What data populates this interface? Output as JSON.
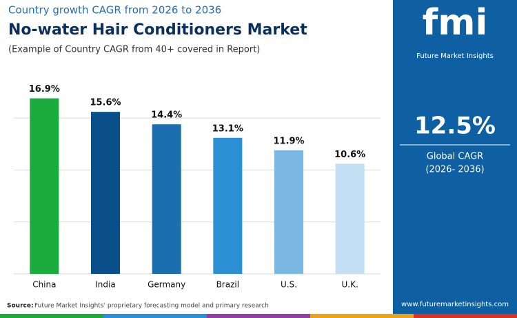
{
  "chart_data": {
    "type": "bar",
    "kicker": "Country growth CAGR from 2026 to 2036",
    "title": "No-water Hair Conditioners Market",
    "subtitle": "(Example of Country CAGR from 40+ covered in Report)",
    "categories": [
      "China",
      "India",
      "Germany",
      "Brazil",
      "U.S.",
      "U.K."
    ],
    "values": [
      16.9,
      15.6,
      14.4,
      13.1,
      11.9,
      10.6
    ],
    "value_labels": [
      "16.9%",
      "15.6%",
      "14.4%",
      "13.1%",
      "11.9%",
      "10.6%"
    ],
    "colors": [
      "#1aab3c",
      "#0b4f8a",
      "#1b6fae",
      "#2b8fd4",
      "#7ab8e3",
      "#c2dff3"
    ],
    "ylim": [
      0,
      18
    ],
    "yticks": [
      0,
      5,
      10,
      15
    ],
    "grid": true
  },
  "source": {
    "label": "Source:",
    "text": "Future Market Insights' proprietary forecasting model and primary research"
  },
  "panel": {
    "logo": "fmi",
    "brand": "Future Market Insights",
    "value": "12.5%",
    "caption": "Global CAGR",
    "period": "(2026- 2036)",
    "website": "www.futuremarketinsights.com"
  }
}
